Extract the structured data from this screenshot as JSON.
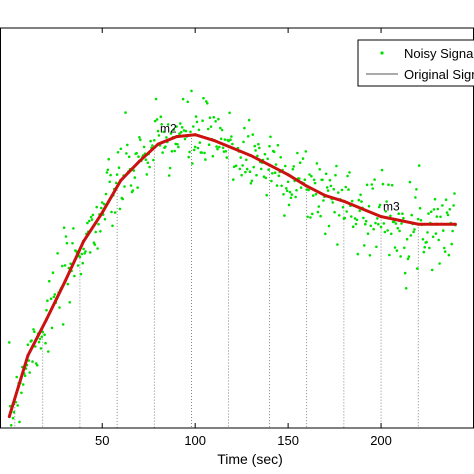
{
  "chart_data": {
    "type": "line",
    "xlabel": "Time (sec)",
    "ylabel": "",
    "xlim": [
      -5,
      250
    ],
    "x_ticks": [
      50,
      100,
      150,
      200
    ],
    "grid": false,
    "legend": {
      "placement": "top-right",
      "entries": [
        {
          "label": "Noisy Signal",
          "color": "#00e000",
          "style": "dots"
        },
        {
          "label": "Original Signal",
          "color": "#555555",
          "style": "line"
        }
      ]
    },
    "series": [
      {
        "color": "#cc1111",
        "x": [
          0,
          5,
          10,
          20,
          30,
          40,
          50,
          60,
          70,
          80,
          90,
          100,
          110,
          120,
          130,
          140,
          150,
          160,
          170,
          180,
          190,
          200,
          210,
          220,
          230,
          240
        ],
        "y": [
          0.06,
          0.22,
          0.38,
          0.57,
          0.77,
          0.98,
          1.13,
          1.3,
          1.4,
          1.49,
          1.53,
          1.54,
          1.51,
          1.47,
          1.43,
          1.38,
          1.33,
          1.27,
          1.22,
          1.19,
          1.15,
          1.11,
          1.09,
          1.07,
          1.07,
          1.07
        ]
      }
    ],
    "noise_series": {
      "name": "Noisy Signal",
      "color": "#00e000",
      "sigma": 0.1,
      "step": 0.5
    },
    "sample_lines": [
      3,
      18,
      38,
      58,
      78,
      98,
      118,
      140,
      160,
      180,
      200,
      220
    ],
    "markers": [
      {
        "label": "m2",
        "x": 80,
        "y": 1.52
      },
      {
        "label": "m3",
        "x": 200,
        "y": 1.11
      }
    ]
  }
}
